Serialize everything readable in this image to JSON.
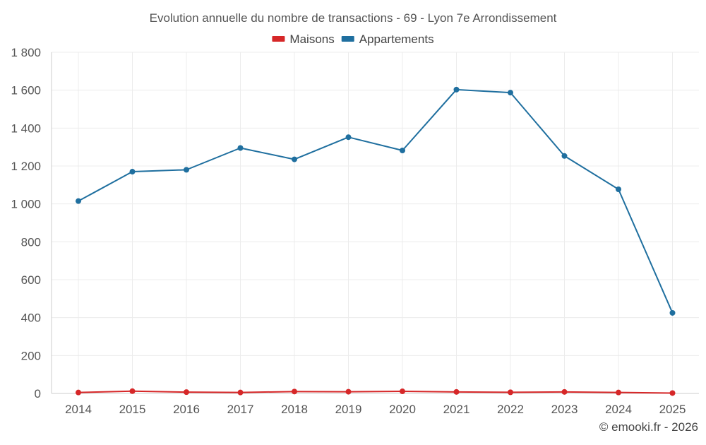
{
  "chart_data": {
    "type": "line",
    "title": "Evolution annuelle du nombre de transactions - 69 - Lyon 7e Arrondissement",
    "xlabel": "",
    "ylabel": "",
    "categories": [
      "2014",
      "2015",
      "2016",
      "2017",
      "2018",
      "2019",
      "2020",
      "2021",
      "2022",
      "2023",
      "2024",
      "2025"
    ],
    "ylim": [
      0,
      1800
    ],
    "yticks": [
      0,
      200,
      400,
      600,
      800,
      1000,
      1200,
      1400,
      1600,
      1800
    ],
    "ytick_labels": [
      "0",
      "200",
      "400",
      "600",
      "800",
      "1 000",
      "1 200",
      "1 400",
      "1 600",
      "1 800"
    ],
    "grid": true,
    "legend_position": "top-center",
    "series": [
      {
        "name": "Maisons",
        "color": "#d62728",
        "values": [
          5,
          12,
          7,
          5,
          10,
          9,
          11,
          8,
          6,
          8,
          5,
          2
        ]
      },
      {
        "name": "Appartements",
        "color": "#1f6f9f",
        "values": [
          1015,
          1170,
          1180,
          1295,
          1235,
          1352,
          1282,
          1603,
          1587,
          1253,
          1077,
          425
        ]
      }
    ]
  },
  "credit": "© emooki.fr - 2026"
}
